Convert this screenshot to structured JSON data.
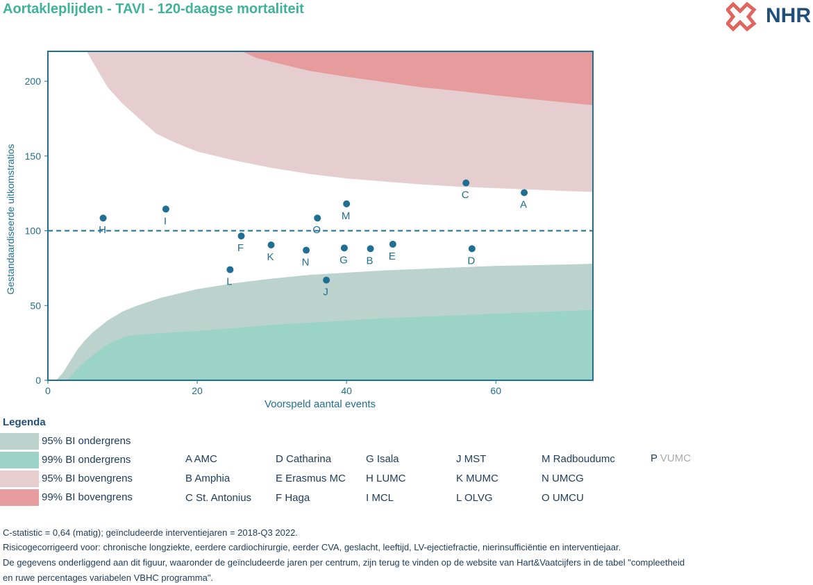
{
  "title": "Aortakleplijden - TAVI - 120-daagse mortaliteit",
  "logo": {
    "text": "NHR",
    "icon": "nhr-cross-logo-icon"
  },
  "colors": {
    "title": "#3fb39a",
    "axis": "#1f6f93",
    "point": "#1f6f93",
    "ci95_lower": "#bcd3cd",
    "ci99_lower": "#9bd4c6",
    "ci95_upper": "#e6cdcf",
    "ci99_upper": "#e69b9c",
    "text": "#1d3b5a"
  },
  "chart_data": {
    "type": "scatter",
    "xlabel": "Voorspeld aantal events",
    "ylabel": "Gestandaardiseerde uitkomstratios",
    "xlim": [
      0,
      73
    ],
    "ylim": [
      0,
      220
    ],
    "xticks": [
      0,
      20,
      40,
      60
    ],
    "yticks": [
      0,
      50,
      100,
      150,
      200
    ],
    "reference_line": 100,
    "grid": false,
    "points": [
      {
        "label": "A",
        "x": 63.8,
        "y": 125.5
      },
      {
        "label": "B",
        "x": 43.2,
        "y": 88
      },
      {
        "label": "C",
        "x": 56.0,
        "y": 132
      },
      {
        "label": "D",
        "x": 56.8,
        "y": 88
      },
      {
        "label": "E",
        "x": 46.2,
        "y": 91
      },
      {
        "label": "F",
        "x": 25.9,
        "y": 96.5
      },
      {
        "label": "G",
        "x": 39.7,
        "y": 88.5
      },
      {
        "label": "H",
        "x": 7.4,
        "y": 108.5
      },
      {
        "label": "I",
        "x": 15.8,
        "y": 114.5
      },
      {
        "label": "J",
        "x": 37.3,
        "y": 67
      },
      {
        "label": "K",
        "x": 29.9,
        "y": 90.5
      },
      {
        "label": "L",
        "x": 24.4,
        "y": 74
      },
      {
        "label": "M",
        "x": 40.0,
        "y": 118
      },
      {
        "label": "N",
        "x": 34.6,
        "y": 87
      },
      {
        "label": "O",
        "x": 36.1,
        "y": 108.5
      }
    ],
    "bands": {
      "upper95": {
        "x": [
          5.2,
          6,
          8,
          10,
          12,
          14.5,
          17,
          20,
          25,
          30,
          35,
          40,
          45,
          50,
          55,
          60,
          65,
          70,
          73
        ],
        "y": [
          220,
          213,
          196,
          185,
          176,
          165,
          159,
          153,
          147,
          142,
          138,
          135,
          133,
          131,
          129.5,
          128.5,
          127.5,
          126.5,
          126
        ]
      },
      "upper99": {
        "x": [
          26,
          28,
          30,
          35,
          40,
          45,
          50,
          55,
          60,
          65,
          70,
          73
        ],
        "y": [
          220,
          215.5,
          213,
          207,
          203,
          199.5,
          196,
          193.5,
          190.5,
          188,
          185.5,
          184
        ]
      },
      "lower95": {
        "x": [
          1.1,
          2,
          3,
          4,
          5,
          6,
          8,
          10,
          12,
          15,
          20,
          25,
          30,
          35,
          40,
          45,
          50,
          55,
          60,
          65,
          70,
          73
        ],
        "y": [
          0,
          5,
          13,
          21,
          27,
          32,
          40,
          46,
          50,
          55,
          61,
          65,
          68,
          70.5,
          72,
          73.5,
          74.5,
          75.5,
          76.5,
          77,
          77.5,
          78
        ]
      },
      "lower99": {
        "x": [
          2.5,
          4,
          6,
          8,
          10,
          11,
          15,
          20,
          25,
          30,
          35,
          40,
          45,
          50,
          55,
          60,
          65,
          70,
          73
        ],
        "y": [
          0,
          8,
          17,
          24,
          28.5,
          30,
          31.5,
          33,
          35,
          37,
          38.5,
          40,
          41.5,
          42.5,
          43.5,
          44.5,
          45.5,
          46.5,
          47
        ]
      }
    }
  },
  "legend": {
    "title": "Legenda",
    "bands": [
      {
        "label": "95% BI ondergrens",
        "color": "#bcd3cd"
      },
      {
        "label": "99% BI ondergrens",
        "color": "#9bd4c6"
      },
      {
        "label": "95% BI bovengrens",
        "color": "#e6cdcf"
      },
      {
        "label": "99% BI bovengrens",
        "color": "#e69b9c"
      }
    ],
    "centers": [
      "A AMC",
      "B Amphia",
      "C St. Antonius",
      "D Catharina",
      "E Erasmus MC",
      "F Haga",
      "G Isala",
      "H LUMC",
      "I MCL",
      "J MST",
      "K MUMC",
      "L OLVG",
      "M Radboudumc",
      "N UMCG",
      "O UMCU"
    ],
    "center_p_letter": "P",
    "center_p_name": "VUMC"
  },
  "footer": {
    "line1": "C-statistic =  0,64 (matig); geïncludeerde interventiejaren = 2018-Q3 2022.",
    "line2": "Risicogecorrigeerd voor: chronische longziekte, eerdere cardiochirurgie, eerder CVA, geslacht, leeftijd, LV-ejectiefractie, nierinsufficiëntie en interventiejaar.",
    "line3": "De gegevens onderliggend aan dit figuur, waaronder de geïncludeerde jaren per centrum, zijn terug te vinden op de website van Hart&Vaatcijfers in de tabel \"compleetheid",
    "line4": "en ruwe percentages variabelen VBHC programma\"."
  }
}
